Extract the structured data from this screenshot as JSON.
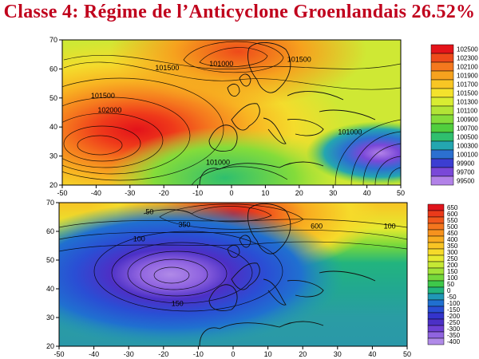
{
  "title": "Classe 4: Régime de l’Anticyclone Groenlandais 26.52%",
  "maps": [
    {
      "id": "slp",
      "x_ticks": [
        "-50",
        "-40",
        "-30",
        "-20",
        "-10",
        "0",
        "10",
        "20",
        "30",
        "40",
        "50"
      ],
      "y_ticks": [
        "70",
        "60",
        "50",
        "40",
        "30",
        "20"
      ],
      "contour_labels": [
        {
          "text": "101500",
          "lon": -19,
          "lat": 59.5
        },
        {
          "text": "101500",
          "lon": -38,
          "lat": 50
        },
        {
          "text": "102000",
          "lon": -36,
          "lat": 45
        },
        {
          "text": "101000",
          "lon": -4,
          "lat": 27
        },
        {
          "text": "101000",
          "lon": 35,
          "lat": 37.5
        },
        {
          "text": "101500",
          "lon": 20,
          "lat": 62.5
        },
        {
          "text": "101000",
          "lon": -3,
          "lat": 61
        }
      ],
      "legend": [
        "102500",
        "102300",
        "102100",
        "101900",
        "101700",
        "101500",
        "101300",
        "101100",
        "100900",
        "100700",
        "100500",
        "100300",
        "100100",
        "99900",
        "99700",
        "99500"
      ],
      "legend_colors": [
        "#e4141a",
        "#ee4a1a",
        "#f4781e",
        "#f6a21e",
        "#f8c624",
        "#f4e22c",
        "#d8ec32",
        "#b2e436",
        "#84dc3a",
        "#50ce3e",
        "#2fbf6e",
        "#24a6b0",
        "#2c70d0",
        "#3c3ed2",
        "#7a48d8",
        "#b282e8"
      ]
    },
    {
      "id": "z500",
      "x_ticks": [
        "-50",
        "-40",
        "-30",
        "-20",
        "-10",
        "0",
        "10",
        "20",
        "30",
        "40",
        "50"
      ],
      "y_ticks": [
        "70",
        "60",
        "50",
        "40",
        "30",
        "20"
      ],
      "contour_labels": [
        {
          "text": "350",
          "lon": -14,
          "lat": 61.5
        },
        {
          "text": "100",
          "lon": -27,
          "lat": 56.5
        },
        {
          "text": "100",
          "lon": 45,
          "lat": 61
        },
        {
          "text": "150",
          "lon": -16,
          "lat": 34
        },
        {
          "text": "50",
          "lon": -24,
          "lat": 66
        },
        {
          "text": "600",
          "lon": 24,
          "lat": 61
        }
      ],
      "legend": [
        "650",
        "600",
        "550",
        "500",
        "450",
        "400",
        "350",
        "300",
        "250",
        "200",
        "150",
        "100",
        "50",
        "0",
        "-50",
        "-100",
        "-150",
        "-200",
        "-250",
        "-300",
        "-350",
        "-400"
      ],
      "legend_colors": [
        "#e0141c",
        "#ea3a1a",
        "#f0581c",
        "#f4761e",
        "#f6921e",
        "#f8ac20",
        "#f8c424",
        "#f6da2a",
        "#e6ea30",
        "#c6e834",
        "#a2e238",
        "#74d83c",
        "#3ec84a",
        "#22b47e",
        "#2098b6",
        "#2070d0",
        "#2a4ed4",
        "#3434cc",
        "#4c30c6",
        "#6e40d4",
        "#9064e0",
        "#b08ae8"
      ]
    }
  ]
}
